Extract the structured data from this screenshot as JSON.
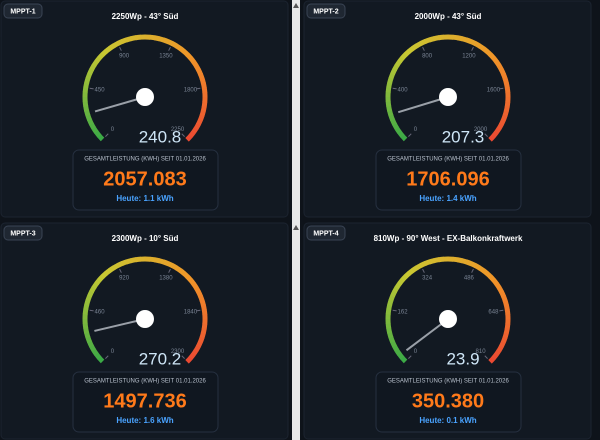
{
  "panels": [
    {
      "label": "MPPT-1",
      "title": "2250Wp - 43° Süd",
      "gauge": {
        "range": [
          0,
          2250
        ],
        "ticks": [
          0,
          450,
          900,
          1350,
          1800,
          2250
        ],
        "value": 240.8
      },
      "total_header": "GESAMTLEISTUNG (KWH) SEIT 01.01.2026",
      "total": "2057.083",
      "today": "Heute: 1.1 kWh"
    },
    {
      "label": "MPPT-2",
      "title": "2000Wp - 43° Süd",
      "gauge": {
        "range": [
          0,
          2000
        ],
        "ticks": [
          0,
          400,
          800,
          1200,
          1600,
          2000
        ],
        "value": 207.3
      },
      "total_header": "GESAMTLEISTUNG (KWH) SEIT 01.01.2026",
      "total": "1706.096",
      "today": "Heute: 1.4 kWh"
    },
    {
      "label": "MPPT-3",
      "title": "2300Wp - 10° Süd",
      "gauge": {
        "range": [
          0,
          2300
        ],
        "ticks": [
          0,
          460,
          920,
          1380,
          1840,
          2300
        ],
        "value": 270.2
      },
      "total_header": "GESAMTLEISTUNG (KWH) SEIT 01.01.2026",
      "total": "1497.736",
      "today": "Heute: 1.6 kWh"
    },
    {
      "label": "MPPT-4",
      "title": "810Wp - 90° West - EX-Balkonkraftwerk",
      "gauge": {
        "range": [
          0,
          810
        ],
        "ticks": [
          0,
          162,
          324,
          486,
          648,
          810
        ],
        "value": 23.9
      },
      "total_header": "GESAMTLEISTUNG (KWH) SEIT 01.01.2026",
      "total": "350.380",
      "today": "Heute: 0.1 kWh"
    }
  ]
}
